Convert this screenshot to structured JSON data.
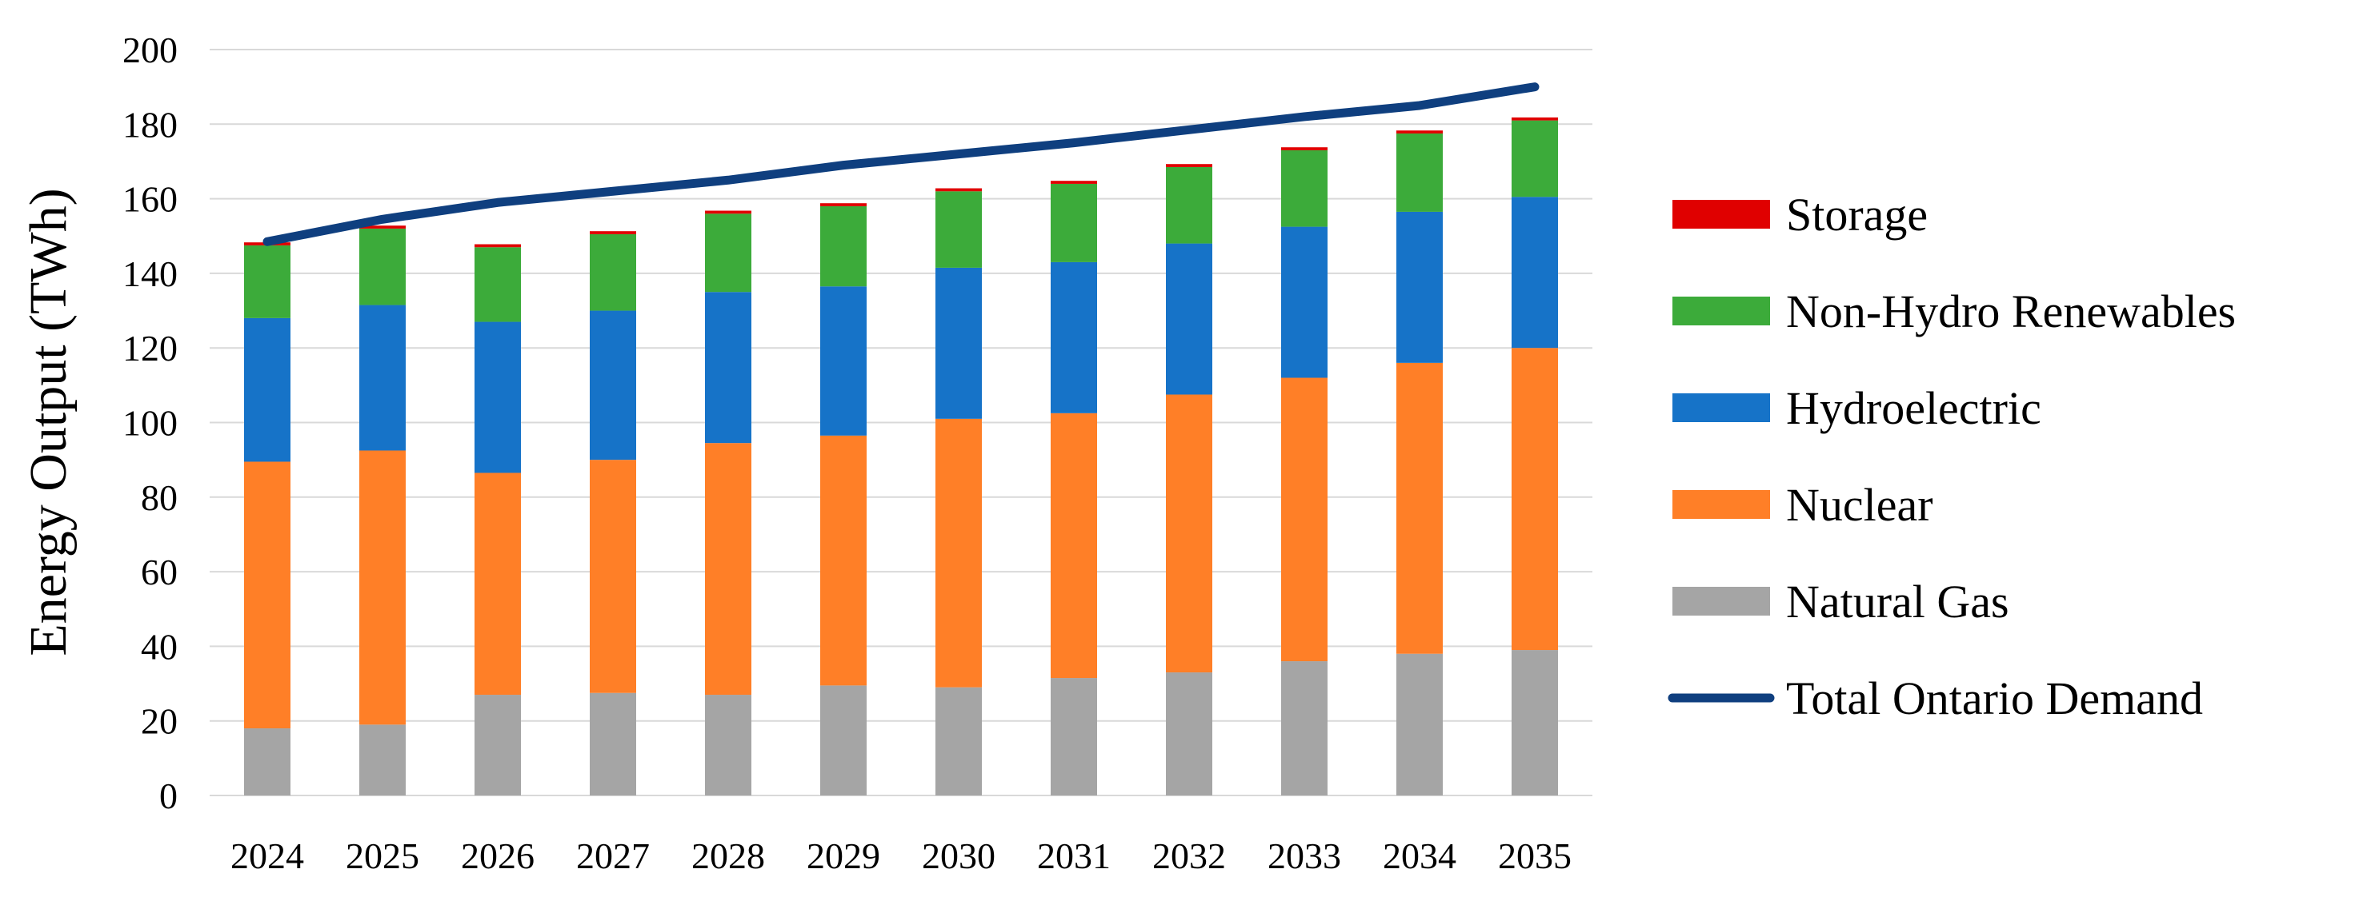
{
  "chart_data": {
    "type": "bar",
    "stacked": true,
    "title": "",
    "xlabel": "",
    "ylabel": "Energy Output (TWh)",
    "ylim": [
      0,
      200
    ],
    "yticks": [
      0,
      20,
      40,
      60,
      80,
      100,
      120,
      140,
      160,
      180,
      200
    ],
    "grid": true,
    "legend_position": "right",
    "categories": [
      "2024",
      "2025",
      "2026",
      "2027",
      "2028",
      "2029",
      "2030",
      "2031",
      "2032",
      "2033",
      "2034",
      "2035"
    ],
    "series": [
      {
        "name": "Natural Gas",
        "color": "#a5a5a5",
        "values": [
          18,
          19,
          27,
          27.5,
          27,
          29.5,
          29,
          31.5,
          33,
          36,
          38,
          39
        ]
      },
      {
        "name": "Nuclear",
        "color": "#ff7f27",
        "values": [
          71.5,
          73.5,
          59.5,
          62.5,
          67.5,
          67,
          72,
          71,
          74.5,
          76,
          78,
          81
        ]
      },
      {
        "name": "Hydroelectric",
        "color": "#1673c8",
        "values": [
          38.5,
          39,
          40.5,
          40,
          40.5,
          40,
          40.5,
          40.5,
          40.5,
          40.5,
          40.5,
          40.5
        ]
      },
      {
        "name": "Non-Hydro Renewables",
        "color": "#3cab3a",
        "values": [
          19.5,
          20.5,
          20,
          20.5,
          21,
          21.5,
          20.5,
          21,
          20.5,
          20.5,
          21,
          20.5
        ]
      },
      {
        "name": "Storage",
        "color": "#e00000",
        "values": [
          0.8,
          0.8,
          0.8,
          0.8,
          0.8,
          0.8,
          0.8,
          0.8,
          0.8,
          0.8,
          0.8,
          0.8
        ]
      }
    ],
    "line_series": {
      "name": "Total Ontario Demand",
      "color": "#0f3f7f",
      "values": [
        148.5,
        154.5,
        159,
        162,
        165,
        169,
        172,
        175,
        178.5,
        182,
        185,
        190
      ]
    },
    "legend_order": [
      "Storage",
      "Non-Hydro Renewables",
      "Hydroelectric",
      "Nuclear",
      "Natural Gas",
      "Total Ontario Demand"
    ]
  }
}
